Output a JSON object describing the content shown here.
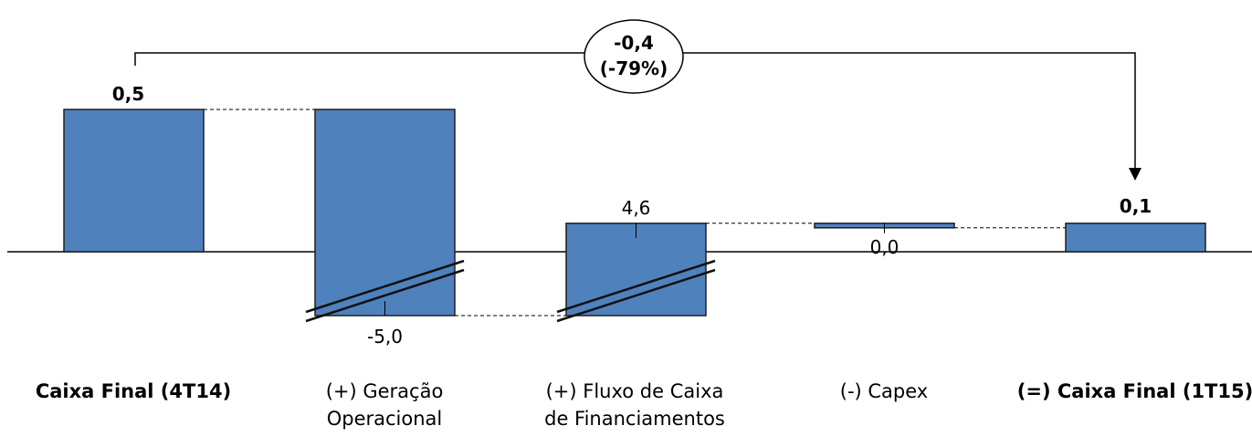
{
  "chart_data": {
    "type": "bar",
    "subtype": "waterfall",
    "categories": [
      "Caixa Final (4T14)",
      "(+) Geração\nOperacional",
      "(+) Fluxo de Caixa\nde Financiamentos",
      "(-) Capex",
      "(=) Caixa Final (1T15)"
    ],
    "values": [
      0.5,
      -5.0,
      4.6,
      0.0,
      0.1
    ],
    "value_labels": [
      "0,5",
      "-5,0",
      "4,6",
      "0,0",
      "0,1"
    ],
    "bold_categories": [
      0,
      4
    ],
    "axis_break": true,
    "change_annotation": {
      "line1": "-0,4",
      "line2": "(-79%)"
    },
    "colors": {
      "bar_fill": "#4F81BD",
      "bar_stroke": "#1F1F1F"
    },
    "title": "",
    "xlabel": "",
    "ylabel": ""
  }
}
